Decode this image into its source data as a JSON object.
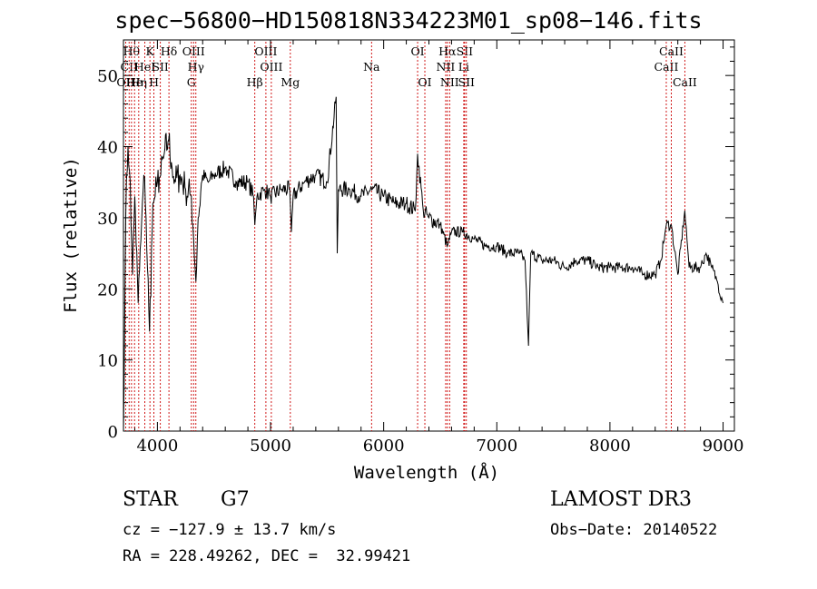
{
  "chart_data": {
    "type": "line",
    "title": "spec−56800−HD150818N334223M01_sp08−146.fits",
    "xlabel": "Wavelength (Å)",
    "ylabel": "Flux (relative)",
    "xlim": [
      3700,
      9100
    ],
    "ylim": [
      0,
      55
    ],
    "xticks": [
      4000,
      5000,
      6000,
      7000,
      8000,
      9000
    ],
    "yticks": [
      0,
      10,
      20,
      30,
      40,
      50
    ],
    "grid": false,
    "series": [
      {
        "name": "spectrum",
        "x": [
          3700,
          3720,
          3740,
          3760,
          3780,
          3800,
          3830,
          3860,
          3880,
          3900,
          3930,
          3960,
          3980,
          4000,
          4030,
          4060,
          4100,
          4130,
          4160,
          4200,
          4250,
          4300,
          4320,
          4340,
          4360,
          4400,
          4450,
          4500,
          4600,
          4700,
          4800,
          4850,
          4861,
          4880,
          4950,
          5000,
          5100,
          5170,
          5184,
          5200,
          5300,
          5400,
          5500,
          5580,
          5590,
          5600,
          5700,
          5800,
          5900,
          6000,
          6100,
          6200,
          6280,
          6300,
          6350,
          6400,
          6500,
          6563,
          6600,
          6700,
          6800,
          6900,
          7000,
          7100,
          7200,
          7250,
          7280,
          7300,
          7400,
          7500,
          7600,
          7700,
          7800,
          7900,
          8000,
          8100,
          8200,
          8300,
          8400,
          8450,
          8498,
          8542,
          8600,
          8662,
          8700,
          8800,
          8850,
          8900,
          8950,
          9000
        ],
        "y": [
          0,
          30,
          40,
          35,
          22,
          33,
          18,
          29,
          36,
          30,
          14,
          32,
          33,
          35,
          36,
          39,
          41,
          37,
          35,
          36,
          34,
          33,
          27,
          21,
          30,
          36,
          35,
          36,
          37,
          35,
          35,
          33,
          29,
          33,
          34,
          33,
          34,
          34,
          28,
          33,
          35,
          36,
          35,
          47,
          25,
          34,
          34,
          33,
          34,
          33,
          32,
          32,
          31,
          39,
          31,
          30,
          29,
          26,
          28,
          28,
          27,
          26,
          26,
          25,
          25,
          24,
          12,
          25,
          24,
          24,
          23,
          24,
          24,
          23,
          23,
          23,
          23,
          22,
          22,
          24,
          29,
          29,
          22,
          31,
          23,
          23,
          25,
          23,
          21,
          18
        ]
      }
    ],
    "lines": [
      {
        "wave": 3720,
        "label": "OII",
        "row": 3
      },
      {
        "wave": 3750,
        "label": "CII",
        "row": 2
      },
      {
        "wave": 3771,
        "label": "Hθ",
        "row": 1
      },
      {
        "wave": 3798,
        "label": "He",
        "row": 3
      },
      {
        "wave": 3835,
        "label": "Hη",
        "row": 3
      },
      {
        "wave": 3889,
        "label": "HeI",
        "row": 2
      },
      {
        "wave": 3934,
        "label": "K",
        "row": 1
      },
      {
        "wave": 3969,
        "label": "H",
        "row": 3
      },
      {
        "wave": 4026,
        "label": "SII",
        "row": 2
      },
      {
        "wave": 4102,
        "label": "Hδ",
        "row": 1
      },
      {
        "wave": 4300,
        "label": "G",
        "row": 3
      },
      {
        "wave": 4320,
        "label": "OIII",
        "row": 1
      },
      {
        "wave": 4340,
        "label": "Hγ",
        "row": 2
      },
      {
        "wave": 4861,
        "label": "Hβ",
        "row": 3
      },
      {
        "wave": 4959,
        "label": "OIII",
        "row": 1
      },
      {
        "wave": 5007,
        "label": "OIII",
        "row": 2
      },
      {
        "wave": 5175,
        "label": "Mg",
        "row": 3
      },
      {
        "wave": 5893,
        "label": "Na",
        "row": 2
      },
      {
        "wave": 6300,
        "label": "OI",
        "row": 1
      },
      {
        "wave": 6364,
        "label": "OI",
        "row": 3
      },
      {
        "wave": 6548,
        "label": "NII",
        "row": 2
      },
      {
        "wave": 6563,
        "label": "Hα",
        "row": 1
      },
      {
        "wave": 6583,
        "label": "NII",
        "row": 3
      },
      {
        "wave": 6708,
        "label": "Li",
        "row": 2
      },
      {
        "wave": 6716,
        "label": "SII",
        "row": 1
      },
      {
        "wave": 6731,
        "label": "SII",
        "row": 3
      },
      {
        "wave": 8498,
        "label": "CaII",
        "row": 2
      },
      {
        "wave": 8542,
        "label": "CaII",
        "row": 1
      },
      {
        "wave": 8662,
        "label": "CaII",
        "row": 3
      }
    ]
  },
  "info": {
    "object_class": "STAR",
    "subclass": "G7",
    "survey": "LAMOST DR3",
    "cz": "cz = −127.9 ± 13.7 km/s",
    "obs_date": "Obs−Date: 20140522",
    "coords": "RA = 228.49262, DEC =  32.99421"
  }
}
